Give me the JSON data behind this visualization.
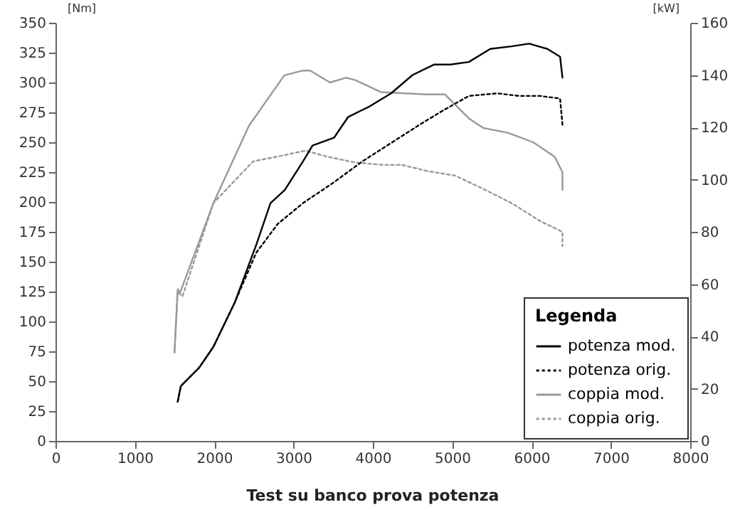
{
  "chart_data": {
    "type": "line",
    "title": "Test su banco prova potenza",
    "ylabel": "[Nm]",
    "y2label": "[kW]",
    "legend_title": "Legenda",
    "legend": "bottom right",
    "grid": false,
    "xlim": [
      0,
      8000
    ],
    "xticks": [
      0,
      1000,
      2000,
      3000,
      4000,
      5000,
      6000,
      7000,
      8000
    ],
    "ylim": [
      0,
      350
    ],
    "yticks": [
      0,
      25,
      50,
      75,
      100,
      125,
      150,
      175,
      200,
      225,
      250,
      275,
      300,
      325,
      350
    ],
    "y2lim": [
      0,
      160
    ],
    "y2ticks": [
      0,
      20,
      40,
      60,
      80,
      100,
      120,
      140,
      160
    ],
    "series": [
      {
        "name": "potenza mod.",
        "color": "#000000",
        "axis": "y2",
        "line_style": "solid",
        "x": [
          1540,
          1580,
          1810,
          1990,
          2260,
          2530,
          2710,
          2890,
          3120,
          3240,
          3510,
          3690,
          3960,
          4230,
          4500,
          4770,
          4980,
          5210,
          5480,
          5750,
          5970,
          6200,
          6360,
          6390
        ],
        "values": [
          15,
          21,
          28,
          36,
          53,
          75,
          91,
          96,
          107,
          113,
          116,
          124,
          128,
          133,
          140,
          144,
          144,
          145,
          150,
          151,
          152,
          150,
          147,
          139
        ]
      },
      {
        "name": "potenza orig.",
        "color": "#000000",
        "axis": "y2",
        "line_style": "dotted",
        "x": [
          1540,
          1580,
          1810,
          1990,
          2260,
          2530,
          2800,
          3120,
          3510,
          3870,
          4230,
          4590,
          4860,
          5210,
          5570,
          5840,
          6110,
          6360,
          6390
        ],
        "values": [
          15,
          21,
          28,
          36,
          53,
          72,
          83,
          91,
          99,
          107,
          114,
          121,
          126,
          132,
          133,
          132,
          132,
          131,
          121
        ]
      },
      {
        "name": "coppia mod.",
        "color": "#999999",
        "line_style": "solid",
        "x": [
          1500,
          1540,
          1570,
          1990,
          2440,
          2885,
          3120,
          3210,
          3460,
          3660,
          3780,
          4100,
          4680,
          4910,
          5210,
          5390,
          5700,
          6020,
          6290,
          6390,
          6390
        ],
        "values": [
          74,
          127,
          124,
          199,
          264,
          306,
          310,
          310,
          300,
          304,
          302,
          292,
          290,
          290,
          270,
          262,
          258,
          250,
          238,
          225,
          210
        ]
      },
      {
        "name": "coppia orig.",
        "color": "#999999",
        "line_style": "dotted",
        "x": [
          1500,
          1540,
          1600,
          1990,
          2490,
          2800,
          3150,
          3420,
          3780,
          4140,
          4370,
          4680,
          5040,
          5390,
          5750,
          6110,
          6390,
          6390
        ],
        "values": [
          74,
          125,
          121,
          199,
          234,
          238,
          243,
          238,
          233,
          231,
          231,
          226,
          222,
          211,
          199,
          184,
          175,
          163
        ]
      }
    ]
  }
}
